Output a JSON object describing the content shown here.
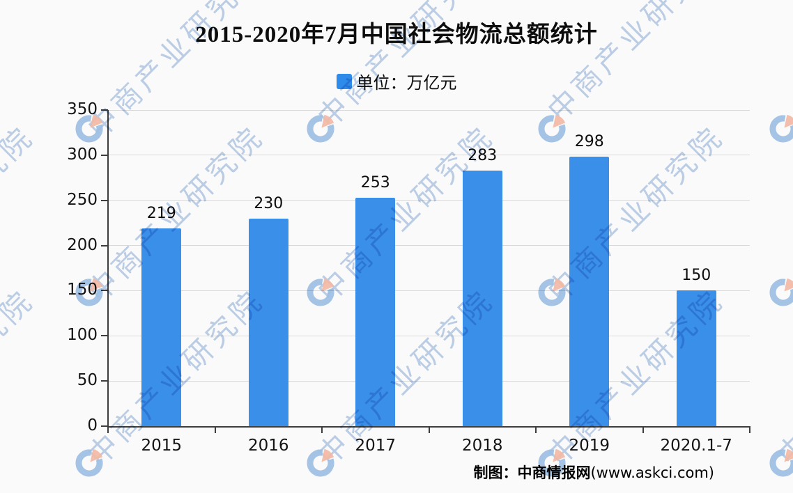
{
  "title": "2015-2020年7月中国社会物流总额统计",
  "legend": {
    "label": "单位：万亿元",
    "swatch_color": "#2E8BE9"
  },
  "chart_data": {
    "type": "bar",
    "title": "2015-2020年7月中国社会物流总额统计",
    "unit_label": "单位：万亿元",
    "categories": [
      "2015",
      "2016",
      "2017",
      "2018",
      "2019",
      "2020.1-7"
    ],
    "values": [
      219,
      230,
      253,
      283,
      298,
      150
    ],
    "xlabel": "",
    "ylabel": "",
    "ylim": [
      0,
      350
    ],
    "yticks": [
      0,
      50,
      100,
      150,
      200,
      250,
      300,
      350
    ],
    "grid": true,
    "legend_position": "top-center",
    "bar_color": "#3A8FE9",
    "footnote": "制图：中商情报网(www.askci.com)"
  },
  "caption": {
    "prefix": "制图：中商情报网",
    "url": "(www.askci.com)"
  },
  "watermark": {
    "text": "中商产业研究院",
    "text_color": "rgba(128,164,210,0.50)",
    "logo_blue": "#9FC3E7",
    "logo_salmon": "#F8BCA6"
  },
  "colors": {
    "background": "#fafafb",
    "gridline": "#d9d9d9",
    "axis": "#3d3d3d",
    "bar": "#3A8FE9"
  }
}
